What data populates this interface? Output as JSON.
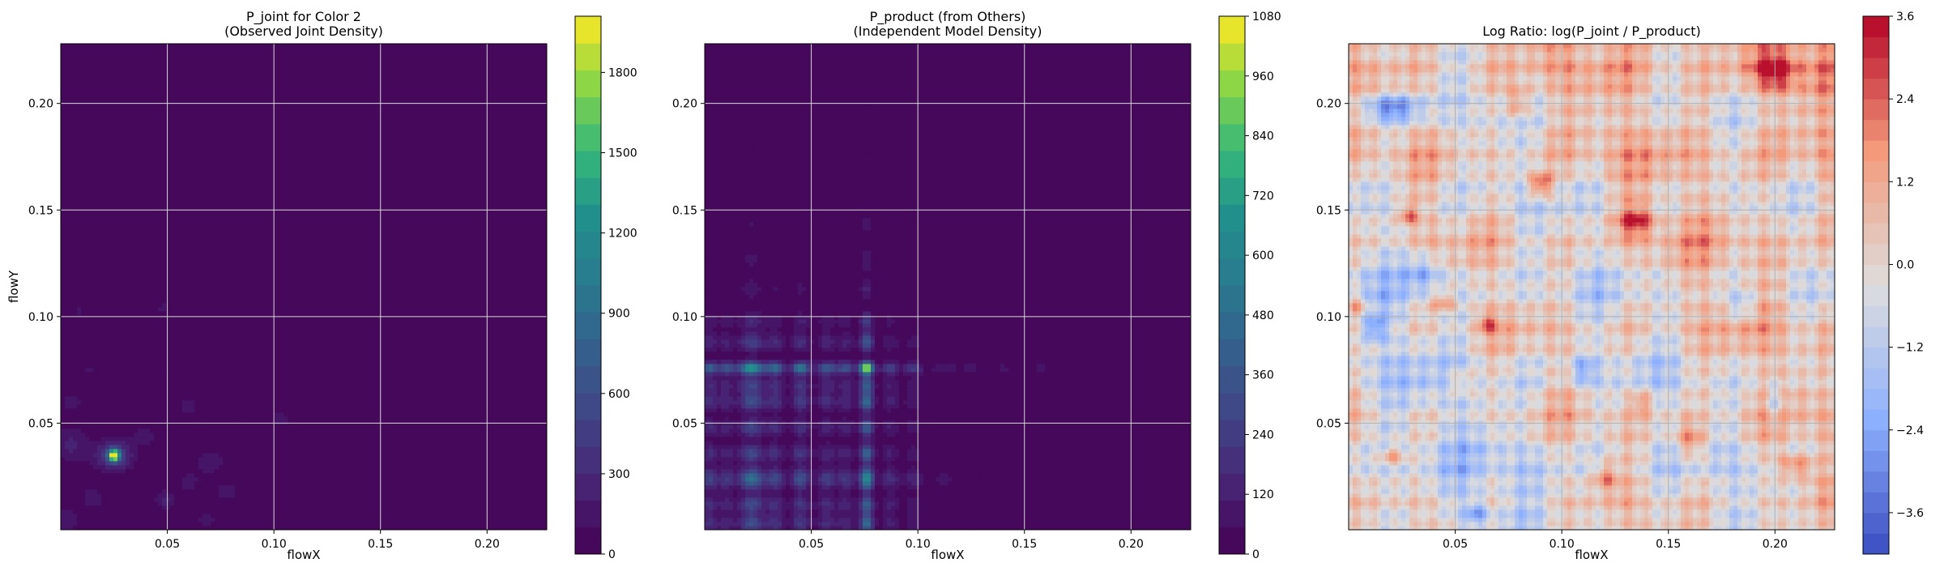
{
  "chart_data": [
    {
      "type": "heatmap",
      "title": "P_joint for Color 2\n(Observed Joint Density)",
      "xlabel": "flowX",
      "ylabel": "flowY",
      "xlim": [
        0.0,
        0.228
      ],
      "ylim": [
        0.0,
        0.228
      ],
      "x_ticks": [
        0.05,
        0.1,
        0.15,
        0.2
      ],
      "y_ticks": [
        0.05,
        0.1,
        0.15,
        0.2
      ],
      "x_tick_labels": [
        "0.05",
        "0.10",
        "0.15",
        "0.20"
      ],
      "y_tick_labels": [
        "0.05",
        "0.10",
        "0.15",
        "0.20"
      ],
      "grid": true,
      "colormap": "viridis",
      "colorbar": {
        "min": 0,
        "max": 2010,
        "ticks": [
          0,
          300,
          600,
          900,
          1200,
          1500,
          1800
        ],
        "tick_labels": [
          "0",
          "300",
          "600",
          "900",
          "1200",
          "1500",
          "1800"
        ]
      },
      "peaks": [
        {
          "x": 0.025,
          "y": 0.035,
          "value": 2000,
          "sx": 0.0018,
          "sy": 0.0018
        },
        {
          "x": 0.025,
          "y": 0.035,
          "value": 520,
          "sx": 0.006,
          "sy": 0.005
        },
        {
          "x": 0.005,
          "y": 0.04,
          "value": 230,
          "sx": 0.006,
          "sy": 0.006
        },
        {
          "x": 0.005,
          "y": 0.06,
          "value": 150,
          "sx": 0.004,
          "sy": 0.004
        },
        {
          "x": 0.003,
          "y": 0.005,
          "value": 200,
          "sx": 0.004,
          "sy": 0.004
        },
        {
          "x": 0.049,
          "y": 0.014,
          "value": 250,
          "sx": 0.0035,
          "sy": 0.003
        },
        {
          "x": 0.039,
          "y": 0.044,
          "value": 190,
          "sx": 0.004,
          "sy": 0.003
        },
        {
          "x": 0.06,
          "y": 0.058,
          "value": 150,
          "sx": 0.004,
          "sy": 0.004
        },
        {
          "x": 0.07,
          "y": 0.032,
          "value": 150,
          "sx": 0.006,
          "sy": 0.005
        },
        {
          "x": 0.078,
          "y": 0.018,
          "value": 140,
          "sx": 0.005,
          "sy": 0.004
        },
        {
          "x": 0.048,
          "y": 0.104,
          "value": 120,
          "sx": 0.0025,
          "sy": 0.004
        },
        {
          "x": 0.103,
          "y": 0.052,
          "value": 140,
          "sx": 0.004,
          "sy": 0.004
        },
        {
          "x": 0.008,
          "y": 0.103,
          "value": 110,
          "sx": 0.003,
          "sy": 0.004
        },
        {
          "x": 0.045,
          "y": 0.075,
          "value": 100,
          "sx": 0.004,
          "sy": 0.004
        },
        {
          "x": 0.03,
          "y": 0.09,
          "value": 90,
          "sx": 0.004,
          "sy": 0.004
        },
        {
          "x": 0.013,
          "y": 0.075,
          "value": 110,
          "sx": 0.004,
          "sy": 0.004
        },
        {
          "x": 0.082,
          "y": 0.052,
          "value": 90,
          "sx": 0.004,
          "sy": 0.004
        },
        {
          "x": 0.06,
          "y": 0.022,
          "value": 130,
          "sx": 0.004,
          "sy": 0.004
        },
        {
          "x": 0.015,
          "y": 0.015,
          "value": 170,
          "sx": 0.004,
          "sy": 0.004
        },
        {
          "x": 0.068,
          "y": 0.005,
          "value": 140,
          "sx": 0.004,
          "sy": 0.003
        }
      ]
    },
    {
      "type": "heatmap",
      "title": "P_product (from Others)\n(Independent Model Density)",
      "xlabel": "flowX",
      "ylabel": "",
      "xlim": [
        0.0,
        0.228
      ],
      "ylim": [
        0.0,
        0.228
      ],
      "x_ticks": [
        0.05,
        0.1,
        0.15,
        0.2
      ],
      "y_ticks": [
        0.05,
        0.1,
        0.15,
        0.2
      ],
      "x_tick_labels": [
        "0.05",
        "0.10",
        "0.15",
        "0.20"
      ],
      "y_tick_labels": [
        "0.05",
        "0.10",
        "0.15",
        "0.20"
      ],
      "grid": true,
      "colormap": "viridis",
      "colorbar": {
        "min": 0,
        "max": 1080,
        "ticks": [
          0,
          120,
          240,
          360,
          480,
          600,
          720,
          840,
          960,
          1080
        ],
        "tick_labels": [
          "0",
          "120",
          "240",
          "360",
          "480",
          "600",
          "720",
          "840",
          "960",
          "1080"
        ]
      },
      "x_marginal": [
        {
          "x": 0.002,
          "w": 0.0025,
          "a": 1.5
        },
        {
          "x": 0.01,
          "w": 0.003,
          "a": 1.2
        },
        {
          "x": 0.022,
          "w": 0.004,
          "a": 2.6
        },
        {
          "x": 0.033,
          "w": 0.003,
          "a": 1.6
        },
        {
          "x": 0.045,
          "w": 0.003,
          "a": 1.9
        },
        {
          "x": 0.057,
          "w": 0.003,
          "a": 1.4
        },
        {
          "x": 0.066,
          "w": 0.003,
          "a": 1.2
        },
        {
          "x": 0.076,
          "w": 0.0022,
          "a": 3.7
        },
        {
          "x": 0.087,
          "w": 0.003,
          "a": 1.0
        },
        {
          "x": 0.098,
          "w": 0.003,
          "a": 0.8
        },
        {
          "x": 0.112,
          "w": 0.004,
          "a": 0.35
        },
        {
          "x": 0.125,
          "w": 0.004,
          "a": 0.25
        },
        {
          "x": 0.14,
          "w": 0.004,
          "a": 0.2
        },
        {
          "x": 0.158,
          "w": 0.004,
          "a": 0.2
        },
        {
          "x": 0.175,
          "w": 0.004,
          "a": 0.18
        },
        {
          "x": 0.195,
          "w": 0.004,
          "a": 0.15
        },
        {
          "x": 0.215,
          "w": 0.004,
          "a": 0.12
        }
      ],
      "y_marginal": [
        {
          "x": 0.003,
          "w": 0.003,
          "a": 1.6
        },
        {
          "x": 0.012,
          "w": 0.003,
          "a": 1.5
        },
        {
          "x": 0.024,
          "w": 0.0035,
          "a": 2.4
        },
        {
          "x": 0.036,
          "w": 0.003,
          "a": 1.5
        },
        {
          "x": 0.048,
          "w": 0.003,
          "a": 1.4
        },
        {
          "x": 0.06,
          "w": 0.003,
          "a": 1.6
        },
        {
          "x": 0.068,
          "w": 0.003,
          "a": 1.4
        },
        {
          "x": 0.076,
          "w": 0.002,
          "a": 3.7
        },
        {
          "x": 0.088,
          "w": 0.003,
          "a": 1.3
        },
        {
          "x": 0.098,
          "w": 0.003,
          "a": 0.8
        },
        {
          "x": 0.113,
          "w": 0.004,
          "a": 0.4
        },
        {
          "x": 0.127,
          "w": 0.004,
          "a": 0.3
        },
        {
          "x": 0.143,
          "w": 0.004,
          "a": 0.25
        },
        {
          "x": 0.16,
          "w": 0.004,
          "a": 0.18
        },
        {
          "x": 0.18,
          "w": 0.004,
          "a": 0.15
        },
        {
          "x": 0.2,
          "w": 0.004,
          "a": 0.12
        },
        {
          "x": 0.218,
          "w": 0.004,
          "a": 0.1
        }
      ],
      "product_scale": 78
    },
    {
      "type": "heatmap",
      "title": "Log Ratio: log(P_joint / P_product)",
      "xlabel": "flowX",
      "ylabel": "",
      "xlim": [
        0.0,
        0.228
      ],
      "ylim": [
        0.0,
        0.228
      ],
      "x_ticks": [
        0.05,
        0.1,
        0.15,
        0.2
      ],
      "y_ticks": [
        0.05,
        0.1,
        0.15,
        0.2
      ],
      "x_tick_labels": [
        "0.05",
        "0.10",
        "0.15",
        "0.20"
      ],
      "y_tick_labels": [
        "0.05",
        "0.10",
        "0.15",
        "0.20"
      ],
      "grid": true,
      "colormap": "coolwarm",
      "colorbar": {
        "min": -4.2,
        "max": 3.6,
        "ticks": [
          -3.6,
          -2.4,
          -1.2,
          0.0,
          1.2,
          2.4,
          3.6
        ],
        "tick_labels": [
          "−3.6",
          "−2.4",
          "−1.2",
          "0.0",
          "1.2",
          "2.4",
          "3.6"
        ]
      },
      "hotspots": [
        {
          "x": 0.09,
          "y": 0.162,
          "value": 3.2,
          "sx": 0.004,
          "sy": 0.004
        },
        {
          "x": 0.135,
          "y": 0.145,
          "value": 2.6,
          "sx": 0.006,
          "sy": 0.005
        },
        {
          "x": 0.16,
          "y": 0.042,
          "value": 2.2,
          "sx": 0.005,
          "sy": 0.006
        },
        {
          "x": 0.21,
          "y": 0.03,
          "value": 2.4,
          "sx": 0.006,
          "sy": 0.004
        },
        {
          "x": 0.2,
          "y": 0.215,
          "value": 2.5,
          "sx": 0.007,
          "sy": 0.006
        },
        {
          "x": 0.08,
          "y": 0.2,
          "value": 2.2,
          "sx": 0.004,
          "sy": 0.006
        },
        {
          "x": 0.02,
          "y": 0.198,
          "value": -3.0,
          "sx": 0.01,
          "sy": 0.004
        },
        {
          "x": 0.035,
          "y": 0.12,
          "value": -2.0,
          "sx": 0.006,
          "sy": 0.006
        },
        {
          "x": 0.012,
          "y": 0.095,
          "value": -2.2,
          "sx": 0.004,
          "sy": 0.004
        },
        {
          "x": 0.06,
          "y": 0.008,
          "value": -2.3,
          "sx": 0.004,
          "sy": 0.004
        },
        {
          "x": 0.2,
          "y": 0.06,
          "value": -2.0,
          "sx": 0.003,
          "sy": 0.006
        },
        {
          "x": 0.11,
          "y": 0.075,
          "value": -2.0,
          "sx": 0.004,
          "sy": 0.005
        },
        {
          "x": 0.028,
          "y": 0.148,
          "value": 2.2,
          "sx": 0.003,
          "sy": 0.003
        },
        {
          "x": 0.045,
          "y": 0.107,
          "value": 1.9,
          "sx": 0.004,
          "sy": 0.003
        },
        {
          "x": 0.065,
          "y": 0.097,
          "value": 1.9,
          "sx": 0.003,
          "sy": 0.003
        },
        {
          "x": 0.004,
          "y": 0.105,
          "value": 2.0,
          "sx": 0.003,
          "sy": 0.004
        },
        {
          "x": 0.02,
          "y": 0.035,
          "value": 2.2,
          "sx": 0.004,
          "sy": 0.003
        },
        {
          "x": 0.052,
          "y": 0.07,
          "value": 1.6,
          "sx": 0.004,
          "sy": 0.004
        },
        {
          "x": 0.138,
          "y": 0.06,
          "value": 1.7,
          "sx": 0.004,
          "sy": 0.004
        },
        {
          "x": 0.185,
          "y": 0.105,
          "value": -1.6,
          "sx": 0.005,
          "sy": 0.005
        },
        {
          "x": 0.12,
          "y": 0.025,
          "value": 1.8,
          "sx": 0.004,
          "sy": 0.004
        }
      ]
    }
  ]
}
